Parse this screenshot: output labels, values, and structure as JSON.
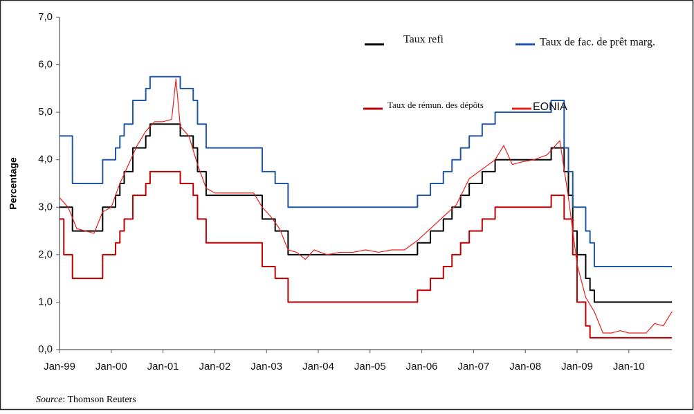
{
  "chart_data": {
    "type": "line",
    "y_axis_label": "Percentage",
    "source_prefix": "Source",
    "source_text": ": Thomson Reuters",
    "xlim": [
      "1999-01",
      "2010-11"
    ],
    "xticks": [
      {
        "value": "1999-01",
        "label": "Jan-99"
      },
      {
        "value": "2000-01",
        "label": "Jan-00"
      },
      {
        "value": "2001-01",
        "label": "Jan-01"
      },
      {
        "value": "2002-01",
        "label": "Jan-02"
      },
      {
        "value": "2003-01",
        "label": "Jan-03"
      },
      {
        "value": "2004-01",
        "label": "Jan-04"
      },
      {
        "value": "2005-01",
        "label": "Jan-05"
      },
      {
        "value": "2006-01",
        "label": "Jan-06"
      },
      {
        "value": "2007-01",
        "label": "Jan-07"
      },
      {
        "value": "2008-01",
        "label": "Jan-08"
      },
      {
        "value": "2009-01",
        "label": "Jan-09"
      },
      {
        "value": "2010-01",
        "label": "Jan-10"
      }
    ],
    "ylim": [
      0,
      7
    ],
    "yticks": [
      {
        "value": 0,
        "label": "0,0"
      },
      {
        "value": 1,
        "label": "1,0"
      },
      {
        "value": 2,
        "label": "2,0"
      },
      {
        "value": 3,
        "label": "3,0"
      },
      {
        "value": 4,
        "label": "4,0"
      },
      {
        "value": 5,
        "label": "5,0"
      },
      {
        "value": 6,
        "label": "6,0"
      },
      {
        "value": 7,
        "label": "7,0"
      }
    ],
    "grid": false,
    "series": [
      {
        "name": "Taux refi",
        "color": "#000000",
        "step": true,
        "x": [
          "1999-01",
          "1999-04",
          "1999-11",
          "2000-02",
          "2000-03",
          "2000-04",
          "2000-06",
          "2000-09",
          "2000-10",
          "2001-05",
          "2001-08",
          "2001-09",
          "2001-11",
          "2002-12",
          "2003-03",
          "2003-06",
          "2005-12",
          "2006-03",
          "2006-06",
          "2006-08",
          "2006-10",
          "2006-12",
          "2007-03",
          "2007-06",
          "2008-07",
          "2008-10",
          "2008-11",
          "2008-12",
          "2009-01",
          "2009-03",
          "2009-04",
          "2009-05",
          "2010-11"
        ],
        "values": [
          3.0,
          2.5,
          3.0,
          3.25,
          3.5,
          3.75,
          4.25,
          4.5,
          4.75,
          4.5,
          4.25,
          3.75,
          3.25,
          2.75,
          2.5,
          2.0,
          2.25,
          2.5,
          2.75,
          3.0,
          3.25,
          3.5,
          3.75,
          4.0,
          4.25,
          3.75,
          3.25,
          2.5,
          2.0,
          1.5,
          1.25,
          1.0,
          1.0
        ]
      },
      {
        "name": "Taux de fac. de prêt marg.",
        "color": "#2155a6",
        "step": true,
        "x": [
          "1999-01",
          "1999-04",
          "1999-11",
          "2000-02",
          "2000-03",
          "2000-04",
          "2000-06",
          "2000-09",
          "2000-10",
          "2001-05",
          "2001-08",
          "2001-09",
          "2001-11",
          "2002-12",
          "2003-03",
          "2003-06",
          "2005-12",
          "2006-03",
          "2006-06",
          "2006-08",
          "2006-10",
          "2006-12",
          "2007-03",
          "2007-06",
          "2008-07",
          "2008-10",
          "2008-11",
          "2008-12",
          "2009-03",
          "2009-04",
          "2009-05",
          "2010-11"
        ],
        "values": [
          4.5,
          3.5,
          4.0,
          4.25,
          4.5,
          4.75,
          5.25,
          5.5,
          5.75,
          5.5,
          5.25,
          4.75,
          4.25,
          3.75,
          3.5,
          3.0,
          3.25,
          3.5,
          3.75,
          4.0,
          4.25,
          4.5,
          4.75,
          5.0,
          5.25,
          4.25,
          3.75,
          3.0,
          2.5,
          2.25,
          1.75,
          1.75
        ]
      },
      {
        "name": "Taux de rémun. des dépôts",
        "color": "#c00000",
        "step": true,
        "x": [
          "1999-01",
          "1999-02",
          "1999-04",
          "1999-11",
          "2000-02",
          "2000-03",
          "2000-04",
          "2000-06",
          "2000-09",
          "2000-10",
          "2001-05",
          "2001-08",
          "2001-09",
          "2001-11",
          "2002-12",
          "2003-03",
          "2003-06",
          "2005-12",
          "2006-03",
          "2006-06",
          "2006-08",
          "2006-10",
          "2006-12",
          "2007-03",
          "2007-06",
          "2008-07",
          "2008-10",
          "2008-12",
          "2009-01",
          "2009-03",
          "2009-04",
          "2010-11"
        ],
        "values": [
          2.75,
          2.0,
          1.5,
          2.0,
          2.25,
          2.5,
          2.75,
          3.25,
          3.5,
          3.75,
          3.5,
          3.25,
          2.75,
          2.25,
          1.75,
          1.5,
          1.0,
          1.25,
          1.5,
          1.75,
          2.0,
          2.25,
          2.5,
          2.75,
          3.0,
          3.25,
          2.75,
          2.0,
          1.0,
          0.5,
          0.25,
          0.25
        ]
      },
      {
        "name": "EONIA",
        "color": "#e8201c",
        "step": false,
        "x": [
          "1999-01",
          "1999-03",
          "1999-05",
          "1999-07",
          "1999-09",
          "1999-11",
          "2000-01",
          "2000-03",
          "2000-05",
          "2000-07",
          "2000-09",
          "2000-11",
          "2001-01",
          "2001-03",
          "2001-04",
          "2001-05",
          "2001-07",
          "2001-09",
          "2001-11",
          "2002-01",
          "2002-04",
          "2002-07",
          "2002-10",
          "2002-12",
          "2003-02",
          "2003-04",
          "2003-06",
          "2003-08",
          "2003-10",
          "2003-12",
          "2004-03",
          "2004-06",
          "2004-09",
          "2004-12",
          "2005-03",
          "2005-06",
          "2005-09",
          "2005-12",
          "2006-03",
          "2006-06",
          "2006-09",
          "2006-12",
          "2007-03",
          "2007-06",
          "2007-08",
          "2007-10",
          "2007-12",
          "2008-03",
          "2008-06",
          "2008-08",
          "2008-09",
          "2008-10",
          "2008-11",
          "2008-12",
          "2009-01",
          "2009-03",
          "2009-05",
          "2009-07",
          "2009-09",
          "2009-11",
          "2010-01",
          "2010-03",
          "2010-05",
          "2010-07",
          "2010-09",
          "2010-11"
        ],
        "values": [
          3.2,
          3.0,
          2.55,
          2.5,
          2.45,
          2.9,
          3.0,
          3.5,
          3.9,
          4.3,
          4.6,
          4.8,
          4.8,
          4.85,
          5.7,
          4.7,
          4.5,
          3.9,
          3.4,
          3.3,
          3.3,
          3.3,
          3.3,
          3.0,
          2.8,
          2.55,
          2.1,
          2.05,
          1.9,
          2.1,
          2.0,
          2.05,
          2.05,
          2.1,
          2.05,
          2.1,
          2.1,
          2.3,
          2.55,
          2.8,
          3.05,
          3.6,
          3.8,
          4.0,
          4.3,
          3.9,
          3.95,
          4.0,
          4.1,
          4.3,
          4.4,
          3.8,
          3.2,
          2.5,
          1.8,
          1.1,
          0.8,
          0.35,
          0.35,
          0.4,
          0.35,
          0.35,
          0.35,
          0.55,
          0.5,
          0.8
        ]
      }
    ]
  }
}
